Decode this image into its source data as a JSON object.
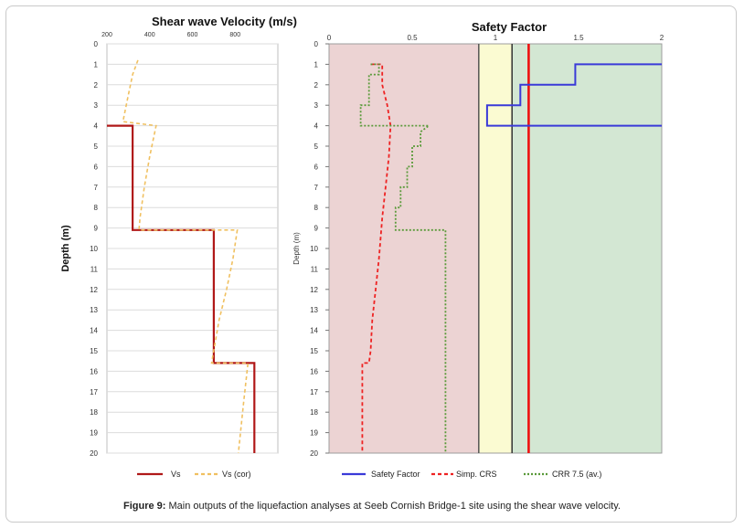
{
  "chart_data": [
    {
      "type": "line",
      "title": "Shear wave Velocity (m/s)",
      "ylabel": "Depth (m)",
      "xlim": [
        200,
        1000
      ],
      "ylim": [
        0,
        20
      ],
      "x_ticks": [
        "200",
        "400",
        "600",
        "800"
      ],
      "y_ticks": [
        "0",
        "1",
        "2",
        "3",
        "4",
        "5",
        "6",
        "7",
        "8",
        "9",
        "10",
        "11",
        "12",
        "13",
        "14",
        "15",
        "16",
        "17",
        "18",
        "19",
        "20"
      ],
      "grid": true,
      "legend_position": "bottom",
      "series": [
        {
          "name": "Vs",
          "color": "#b01818",
          "style": "solid",
          "points": [
            [
              200,
              4
            ],
            [
              320,
              4
            ],
            [
              320,
              9.1
            ],
            [
              700,
              9.1
            ],
            [
              700,
              15.6
            ],
            [
              890,
              15.6
            ],
            [
              890,
              20
            ]
          ]
        },
        {
          "name": "Vs (cor)",
          "color": "#f0c060",
          "style": "dashed",
          "points": [
            [
              345,
              0.8
            ],
            [
              320,
              1.5
            ],
            [
              300,
              2.5
            ],
            [
              275,
              3.8
            ],
            [
              430,
              4.0
            ],
            [
              400,
              5.5
            ],
            [
              375,
              7.0
            ],
            [
              355,
              8.5
            ],
            [
              350,
              9.1
            ],
            [
              810,
              9.1
            ],
            [
              790,
              10.5
            ],
            [
              760,
              12.0
            ],
            [
              725,
              13.5
            ],
            [
              690,
              15.6
            ],
            [
              860,
              15.6
            ],
            [
              840,
              17.5
            ],
            [
              815,
              20
            ]
          ]
        }
      ]
    },
    {
      "type": "line",
      "title": "Safety Factor",
      "ylabel": "Depth (m)",
      "xlim": [
        0,
        2
      ],
      "ylim": [
        0,
        20
      ],
      "x_ticks": [
        "0",
        "0.5",
        "1",
        "1.5",
        "2"
      ],
      "y_ticks": [
        "0",
        "1",
        "2",
        "3",
        "4",
        "5",
        "6",
        "7",
        "8",
        "9",
        "10",
        "11",
        "12",
        "13",
        "14",
        "15",
        "16",
        "17",
        "18",
        "19",
        "20"
      ],
      "zones": [
        {
          "from": 0,
          "to": 0.9,
          "color": "#ecd3d3"
        },
        {
          "from": 0.9,
          "to": 1.1,
          "color": "#fbfbd2"
        },
        {
          "from": 1.1,
          "to": 2.0,
          "color": "#d3e7d3"
        }
      ],
      "reference_lines": [
        {
          "x": 0.9,
          "color": "#555555"
        },
        {
          "x": 1.1,
          "color": "#333333"
        },
        {
          "x": 1.2,
          "color": "#ee1111"
        }
      ],
      "legend_position": "bottom",
      "series": [
        {
          "name": "Safety Factor",
          "color": "#3a3ad8",
          "style": "solid",
          "points": [
            [
              2.0,
              1.0
            ],
            [
              1.48,
              1.0
            ],
            [
              1.48,
              2.0
            ],
            [
              1.15,
              2.0
            ],
            [
              1.15,
              3.0
            ],
            [
              0.95,
              3.0
            ],
            [
              0.95,
              4.0
            ],
            [
              2.0,
              4.0
            ]
          ]
        },
        {
          "name": "Simp. CRS",
          "color": "#ee2222",
          "style": "dashed",
          "points": [
            [
              0.25,
              1.0
            ],
            [
              0.32,
              1.0
            ],
            [
              0.32,
              2.0
            ],
            [
              0.35,
              3.0
            ],
            [
              0.37,
              4.0
            ],
            [
              0.36,
              5.5
            ],
            [
              0.34,
              7.0
            ],
            [
              0.32,
              8.5
            ],
            [
              0.31,
              9.5
            ],
            [
              0.3,
              10.5
            ],
            [
              0.28,
              12.0
            ],
            [
              0.26,
              13.5
            ],
            [
              0.25,
              15.0
            ],
            [
              0.24,
              15.6
            ],
            [
              0.2,
              15.6
            ],
            [
              0.2,
              20.0
            ]
          ]
        },
        {
          "name": "CRR 7.5 (av.)",
          "color": "#5a9a3a",
          "style": "dotted",
          "points": [
            [
              0.25,
              1.0
            ],
            [
              0.3,
              1.0
            ],
            [
              0.3,
              1.5
            ],
            [
              0.24,
              1.5
            ],
            [
              0.24,
              3.0
            ],
            [
              0.19,
              3.0
            ],
            [
              0.19,
              4.0
            ],
            [
              0.6,
              4.0
            ],
            [
              0.55,
              4.3
            ],
            [
              0.55,
              5.0
            ],
            [
              0.5,
              5.0
            ],
            [
              0.5,
              6.0
            ],
            [
              0.47,
              6.0
            ],
            [
              0.47,
              7.0
            ],
            [
              0.43,
              7.0
            ],
            [
              0.43,
              8.0
            ],
            [
              0.4,
              8.0
            ],
            [
              0.4,
              9.1
            ],
            [
              0.7,
              9.1
            ],
            [
              0.7,
              20.0
            ]
          ]
        }
      ]
    }
  ],
  "caption": {
    "label": "Figure 9:",
    "text": " Main outputs of the liquefaction analyses at Seeb Cornish Bridge-1 site using the shear wave velocity."
  }
}
